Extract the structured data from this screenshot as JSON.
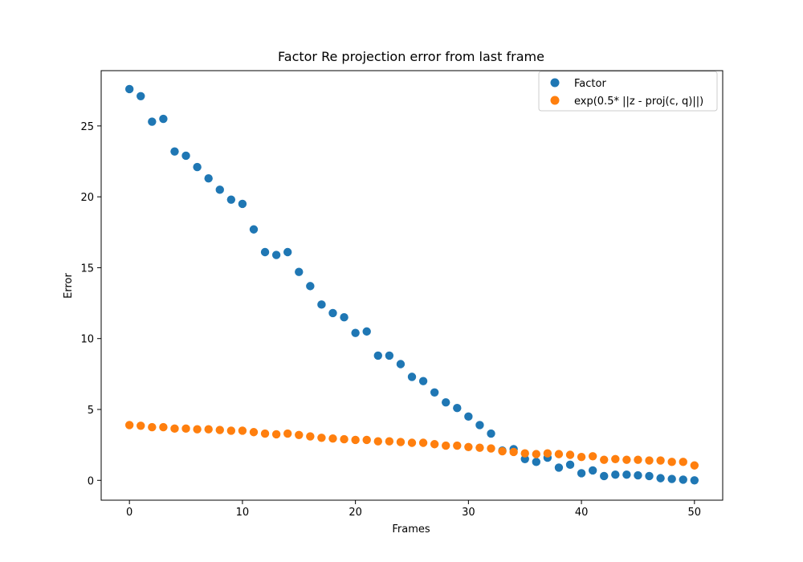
{
  "chart_data": {
    "type": "scatter",
    "title": "Factor Re projection error from last frame",
    "xlabel": "Frames",
    "ylabel": "Error",
    "xlim": [
      -2.5,
      52.5
    ],
    "ylim": [
      -1.4,
      28.9
    ],
    "xticks": [
      0,
      10,
      20,
      30,
      40,
      50
    ],
    "yticks": [
      0,
      5,
      10,
      15,
      20,
      25
    ],
    "grid": false,
    "legend_position": "top-right",
    "series": [
      {
        "name": "Factor",
        "color": "#1f77b4",
        "x": [
          0,
          1,
          2,
          3,
          4,
          5,
          6,
          7,
          8,
          9,
          10,
          11,
          12,
          13,
          14,
          15,
          16,
          17,
          18,
          19,
          20,
          21,
          22,
          23,
          24,
          25,
          26,
          27,
          28,
          29,
          30,
          31,
          32,
          33,
          34,
          35,
          36,
          37,
          38,
          39,
          40,
          41,
          42,
          43,
          44,
          45,
          46,
          47,
          48,
          49,
          50
        ],
        "y": [
          27.6,
          27.1,
          25.3,
          25.5,
          23.2,
          22.9,
          22.1,
          21.3,
          20.5,
          19.8,
          19.5,
          17.7,
          16.1,
          15.9,
          16.1,
          14.7,
          13.7,
          12.4,
          11.8,
          11.5,
          10.4,
          10.5,
          8.8,
          8.8,
          8.2,
          7.3,
          7.0,
          6.2,
          5.5,
          5.1,
          4.5,
          3.9,
          3.3,
          2.1,
          2.2,
          1.5,
          1.3,
          1.6,
          0.9,
          1.1,
          0.5,
          0.7,
          0.3,
          0.4,
          0.4,
          0.35,
          0.3,
          0.15,
          0.1,
          0.05,
          0.0
        ]
      },
      {
        "name": "exp(0.5* ||z - proj(c, q)||)",
        "color": "#ff7f0e",
        "x": [
          0,
          1,
          2,
          3,
          4,
          5,
          6,
          7,
          8,
          9,
          10,
          11,
          12,
          13,
          14,
          15,
          16,
          17,
          18,
          19,
          20,
          21,
          22,
          23,
          24,
          25,
          26,
          27,
          28,
          29,
          30,
          31,
          32,
          33,
          34,
          35,
          36,
          37,
          38,
          39,
          40,
          41,
          42,
          43,
          44,
          45,
          46,
          47,
          48,
          49,
          50
        ],
        "y": [
          3.9,
          3.85,
          3.75,
          3.75,
          3.65,
          3.65,
          3.6,
          3.6,
          3.55,
          3.5,
          3.5,
          3.4,
          3.3,
          3.25,
          3.3,
          3.2,
          3.1,
          3.0,
          2.95,
          2.9,
          2.85,
          2.85,
          2.75,
          2.75,
          2.7,
          2.65,
          2.65,
          2.55,
          2.45,
          2.45,
          2.35,
          2.3,
          2.25,
          2.05,
          2.0,
          1.9,
          1.85,
          1.9,
          1.85,
          1.8,
          1.65,
          1.7,
          1.45,
          1.5,
          1.45,
          1.45,
          1.4,
          1.4,
          1.3,
          1.3,
          1.05
        ]
      }
    ]
  }
}
